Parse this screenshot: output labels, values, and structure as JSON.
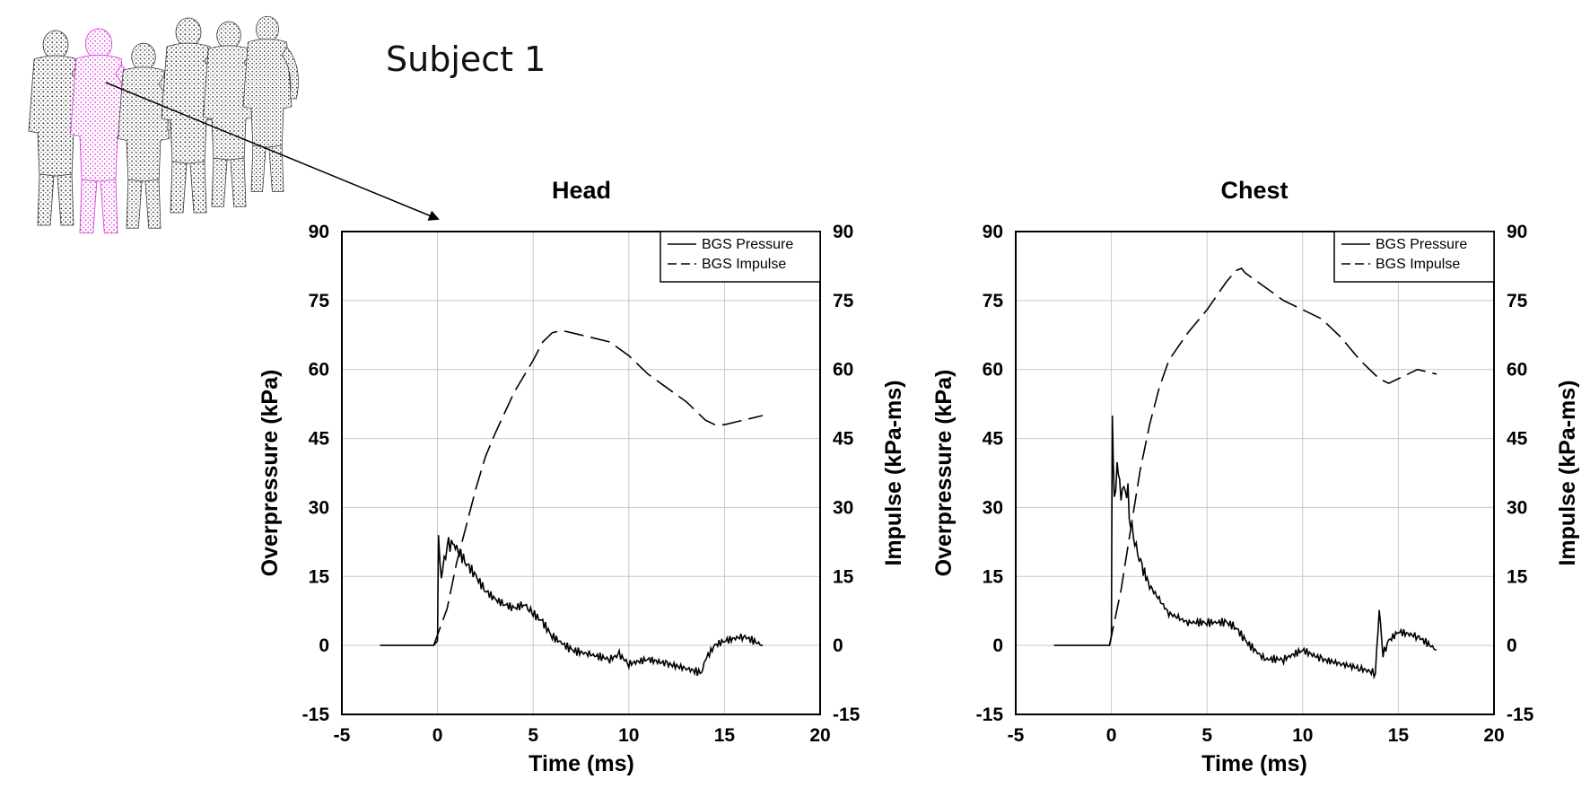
{
  "subject_label": "Subject 1",
  "colors": {
    "highlight": "#e23ee2",
    "figure": "#222222",
    "line": "#000000",
    "grid": "#c8c8c8"
  },
  "chart_data": [
    {
      "type": "line",
      "title": "Head",
      "xlabel": "Time (ms)",
      "ylabel": "Overpressure (kPa)",
      "y2label": "Impulse (kPa-ms)",
      "xlim": [
        -5,
        20
      ],
      "ylim": [
        -15,
        90
      ],
      "y2lim": [
        -15,
        90
      ],
      "xticks": [
        -5,
        0,
        5,
        10,
        15,
        20
      ],
      "yticks": [
        -15,
        0,
        15,
        30,
        45,
        60,
        75,
        90
      ],
      "grid": true,
      "legend": "top-right",
      "series": [
        {
          "name": "BGS Pressure",
          "style": "solid",
          "axis": "left",
          "x": [
            -3,
            -0.2,
            0,
            0.05,
            0.2,
            0.5,
            0.8,
            1.0,
            1.5,
            2.0,
            2.5,
            3.0,
            3.5,
            4.0,
            4.5,
            4.8,
            5.0,
            5.5,
            6.0,
            7.0,
            8.0,
            9.0,
            9.5,
            10.0,
            11.0,
            12.0,
            13.0,
            13.8,
            14.0,
            14.5,
            15.0,
            16.0,
            17.0
          ],
          "y": [
            0,
            0,
            1,
            24,
            15,
            22,
            22,
            21,
            18,
            15,
            12,
            10,
            9,
            8,
            9,
            8,
            7,
            5,
            2,
            -1,
            -2,
            -3,
            -2,
            -4,
            -3,
            -4,
            -5,
            -6,
            -3,
            0,
            1,
            2,
            0
          ]
        },
        {
          "name": "BGS Impulse",
          "style": "dashed",
          "axis": "right",
          "x": [
            -0.2,
            0.5,
            1,
            1.5,
            2,
            2.5,
            3,
            4,
            5,
            5.5,
            6,
            6.5,
            7,
            8,
            9,
            10,
            11,
            12,
            13,
            14,
            14.5,
            15,
            15.5,
            16,
            17
          ],
          "y": [
            0,
            8,
            18,
            26,
            34,
            41,
            46,
            55,
            62,
            66,
            68,
            68.5,
            68,
            67,
            66,
            63,
            59,
            56,
            53,
            49,
            48,
            48,
            48.5,
            49,
            50
          ]
        }
      ]
    },
    {
      "type": "line",
      "title": "Chest",
      "xlabel": "Time (ms)",
      "ylabel": "Overpressure (kPa)",
      "y2label": "Impulse (kPa-ms)",
      "xlim": [
        -5,
        20
      ],
      "ylim": [
        -15,
        90
      ],
      "y2lim": [
        -15,
        90
      ],
      "xticks": [
        -5,
        0,
        5,
        10,
        15,
        20
      ],
      "yticks": [
        -15,
        0,
        15,
        30,
        45,
        60,
        75,
        90
      ],
      "grid": true,
      "legend": "top-right",
      "series": [
        {
          "name": "BGS Pressure",
          "style": "solid",
          "axis": "left",
          "x": [
            -3,
            -0.1,
            0,
            0.05,
            0.15,
            0.3,
            0.5,
            0.8,
            1.0,
            1.3,
            1.6,
            2.0,
            2.5,
            3.0,
            3.5,
            4.0,
            5.0,
            6.0,
            6.5,
            7.0,
            8.0,
            9.0,
            10.0,
            11.0,
            12.0,
            13.0,
            13.8,
            14.0,
            14.2,
            14.5,
            15.0,
            16.0,
            17.0
          ],
          "y": [
            0,
            0,
            2,
            50,
            30,
            40,
            33,
            35,
            27,
            21,
            17,
            13,
            10,
            7,
            6,
            5,
            5,
            5,
            4,
            1,
            -3,
            -3,
            -1,
            -3,
            -4,
            -5,
            -6,
            8,
            -2,
            1,
            3,
            2,
            -1
          ]
        },
        {
          "name": "BGS Impulse",
          "style": "dashed",
          "axis": "right",
          "x": [
            -0.1,
            0.5,
            1,
            1.5,
            2,
            2.5,
            3,
            3.5,
            4,
            5,
            5.5,
            6,
            6.5,
            6.8,
            7,
            8,
            9,
            10,
            11,
            12,
            13,
            14,
            14.5,
            15,
            16,
            17
          ],
          "y": [
            0,
            12,
            25,
            38,
            48,
            56,
            62,
            65,
            68,
            73,
            76,
            79,
            81.5,
            82,
            81,
            78,
            75,
            73,
            71,
            67,
            62,
            58,
            57,
            58,
            60,
            59
          ]
        }
      ]
    }
  ]
}
